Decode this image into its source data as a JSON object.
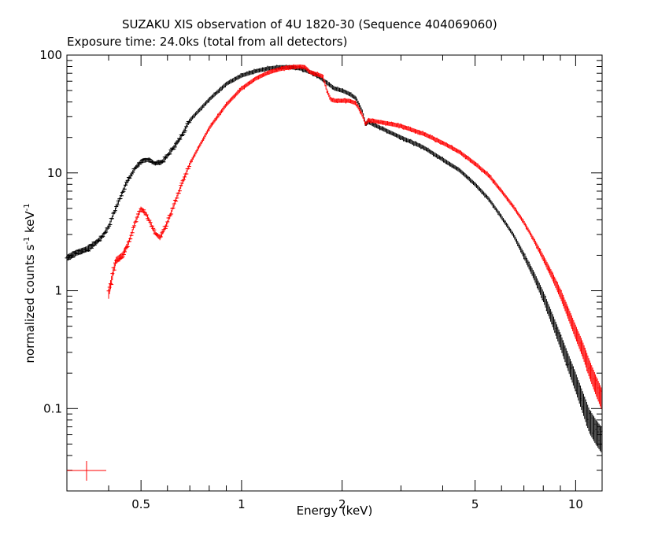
{
  "chart_data": {
    "type": "scatter",
    "title": "SUZAKU XIS observation of 4U 1820-30 (Sequence 404069060)",
    "subtitle": "Exposure time: 24.0ks (total from all detectors)",
    "xlabel": "Energy (keV)",
    "ylabel": "normalized counts s",
    "ylabel_unit_1": "-1",
    "ylabel_mid": " keV",
    "ylabel_unit_2": "-1",
    "x_scale": "log",
    "y_scale": "log",
    "xlim": [
      0.3,
      12
    ],
    "ylim": [
      0.02,
      100
    ],
    "x_ticks": [
      {
        "value": 0.5,
        "label": "0.5"
      },
      {
        "value": 1,
        "label": "1"
      },
      {
        "value": 2,
        "label": "2"
      },
      {
        "value": 5,
        "label": "5"
      },
      {
        "value": 10,
        "label": "10"
      }
    ],
    "y_ticks": [
      {
        "value": 0.1,
        "label": "0.1"
      },
      {
        "value": 1,
        "label": "1"
      },
      {
        "value": 10,
        "label": "10"
      },
      {
        "value": 100,
        "label": "100"
      }
    ],
    "series": [
      {
        "color": "#000000",
        "x": [
          0.3,
          0.32,
          0.35,
          0.38,
          0.4,
          0.42,
          0.45,
          0.48,
          0.5,
          0.53,
          0.55,
          0.58,
          0.6,
          0.65,
          0.7,
          0.8,
          0.9,
          1.0,
          1.1,
          1.2,
          1.3,
          1.4,
          1.5,
          1.6,
          1.7,
          1.8,
          1.9,
          2.0,
          2.1,
          2.2,
          2.3,
          2.35,
          2.4,
          2.5,
          2.7,
          3.0,
          3.5,
          4.0,
          4.5,
          5.0,
          5.5,
          6.0,
          6.5,
          7.0,
          7.5,
          8.0,
          8.5,
          9.0,
          9.5,
          10.0,
          10.5,
          11.0,
          11.5,
          12.0
        ],
        "y": [
          1.9,
          2.1,
          2.3,
          2.8,
          3.5,
          5.0,
          8.0,
          11.0,
          12.5,
          13.0,
          12.0,
          12.5,
          14.0,
          19.0,
          28.0,
          42.0,
          57.0,
          67.0,
          73.0,
          77.0,
          79.0,
          79.0,
          77.0,
          72.0,
          66.0,
          58.0,
          52.0,
          50.0,
          47.0,
          43.0,
          33.0,
          26.0,
          27.0,
          25.5,
          23.0,
          20.0,
          16.5,
          13.0,
          10.5,
          8.0,
          6.0,
          4.2,
          3.0,
          2.0,
          1.35,
          0.9,
          0.58,
          0.38,
          0.25,
          0.17,
          0.115,
          0.08,
          0.065,
          0.055
        ]
      },
      {
        "color": "#ff0000",
        "x": [
          0.4,
          0.42,
          0.44,
          0.46,
          0.48,
          0.5,
          0.52,
          0.55,
          0.57,
          0.6,
          0.65,
          0.7,
          0.8,
          0.9,
          1.0,
          1.1,
          1.2,
          1.3,
          1.4,
          1.5,
          1.55,
          1.6,
          1.7,
          1.75,
          1.8,
          1.85,
          1.9,
          2.0,
          2.1,
          2.2,
          2.3,
          2.35,
          2.4,
          2.5,
          2.7,
          3.0,
          3.5,
          4.0,
          4.5,
          5.0,
          5.5,
          6.0,
          6.5,
          7.0,
          7.5,
          8.0,
          8.5,
          9.0,
          9.5,
          10.0,
          10.5,
          11.0,
          11.5,
          12.0
        ],
        "y": [
          0.95,
          1.8,
          2.0,
          2.6,
          3.8,
          5.0,
          4.4,
          3.1,
          2.8,
          3.8,
          7.0,
          12.0,
          24.0,
          38.0,
          52.0,
          63.0,
          71.0,
          76.0,
          79.0,
          80.0,
          79.0,
          72.0,
          68.0,
          66.0,
          50.0,
          42.0,
          41.0,
          41.0,
          41.0,
          39.0,
          31.0,
          26.0,
          28.0,
          27.5,
          26.5,
          25.0,
          21.5,
          18.0,
          15.0,
          12.0,
          9.5,
          7.0,
          5.2,
          3.8,
          2.7,
          1.9,
          1.35,
          0.95,
          0.65,
          0.45,
          0.32,
          0.22,
          0.16,
          0.12
        ]
      }
    ],
    "error_bar_marker": {
      "color": "#ff0000"
    }
  }
}
